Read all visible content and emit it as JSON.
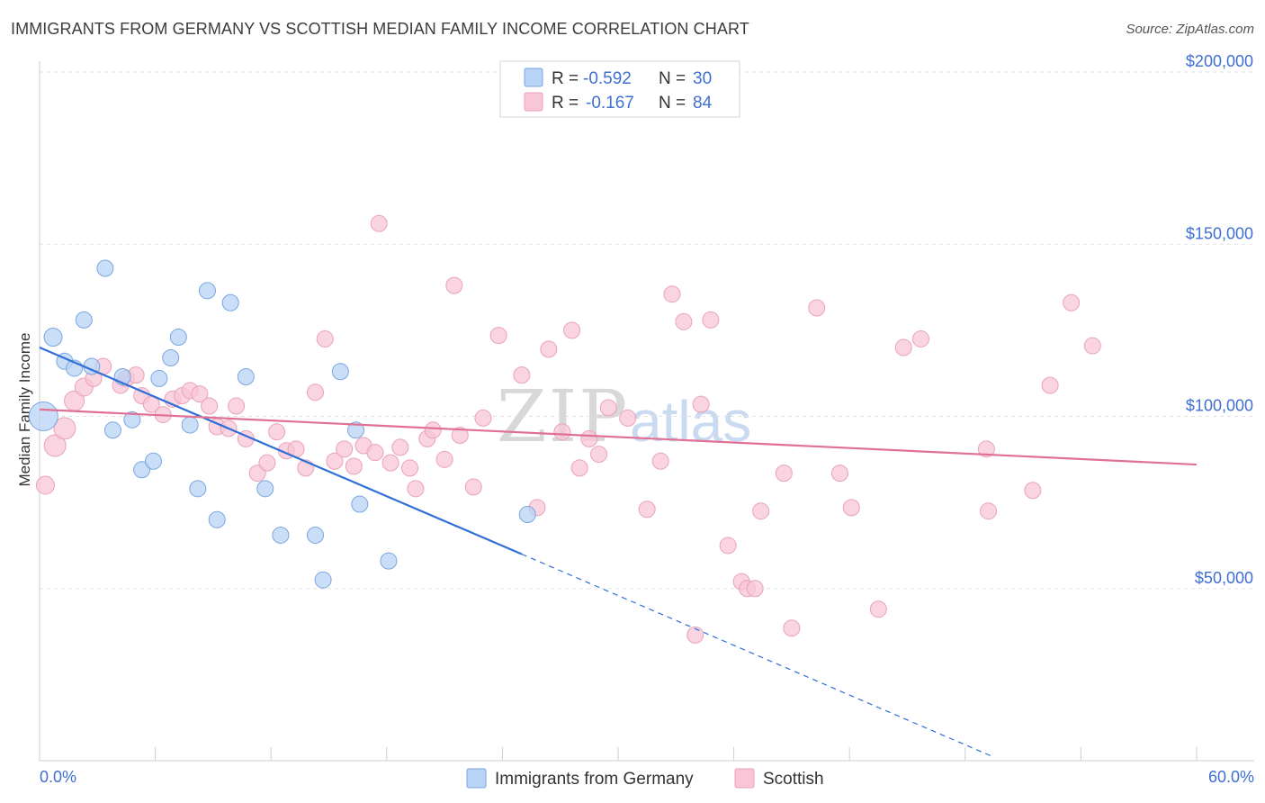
{
  "header": {
    "title": "IMMIGRANTS FROM GERMANY VS SCOTTISH MEDIAN FAMILY INCOME CORRELATION CHART",
    "source": "Source: ZipAtlas.com"
  },
  "watermark": {
    "zip": "ZIP",
    "atlas": "atlas"
  },
  "colors": {
    "blue_fill": "#b8d3f5",
    "blue_stroke": "#7aa6e0",
    "blue_line": "#2f6fd6",
    "pink_fill": "#f8c6d6",
    "pink_stroke": "#e9a3b9",
    "pink_line": "#e07096",
    "accent_text": "#3f6fd1"
  },
  "legend": {
    "series": [
      {
        "r_label": "R = ",
        "r_value": "-0.592",
        "n_label": "N = ",
        "n_value": "30"
      },
      {
        "r_label": "R = ",
        "r_value": "-0.167",
        "n_label": "N = ",
        "n_value": "84"
      }
    ]
  },
  "chart_data": {
    "type": "scatter",
    "title": "IMMIGRANTS FROM GERMANY VS SCOTTISH MEDIAN FAMILY INCOME CORRELATION CHART",
    "xlabel": "",
    "ylabel": "Median Family Income",
    "xlim": [
      0,
      60
    ],
    "ylim": [
      0,
      200000
    ],
    "x_tick_labels": [
      "0.0%",
      "60.0%"
    ],
    "y_ticks": [
      {
        "value": 50000,
        "label": "$50,000"
      },
      {
        "value": 100000,
        "label": "$100,000"
      },
      {
        "value": 150000,
        "label": "$150,000"
      },
      {
        "value": 200000,
        "label": "$200,000"
      }
    ],
    "series": [
      {
        "name": "Immigrants from Germany",
        "color": "#b8d3f5",
        "trend": {
          "x0": 0,
          "y0": 120000,
          "x1": 25,
          "y1": 60000,
          "dashed_to_x": 49.5,
          "dashed_to_y": 1000
        },
        "points": [
          [
            0.2,
            100000,
            16
          ],
          [
            0.7,
            123000,
            10
          ],
          [
            1.3,
            116000,
            9
          ],
          [
            1.8,
            114000,
            9
          ],
          [
            2.3,
            128000,
            9
          ],
          [
            2.7,
            114500,
            9
          ],
          [
            3.4,
            143000,
            9
          ],
          [
            3.8,
            96000,
            9
          ],
          [
            4.3,
            111500,
            9
          ],
          [
            4.8,
            99000,
            9
          ],
          [
            5.3,
            84500,
            9
          ],
          [
            5.9,
            87000,
            9
          ],
          [
            6.2,
            111000,
            9
          ],
          [
            6.8,
            117000,
            9
          ],
          [
            7.2,
            123000,
            9
          ],
          [
            7.8,
            97500,
            9
          ],
          [
            8.2,
            79000,
            9
          ],
          [
            8.7,
            136500,
            9
          ],
          [
            9.2,
            70000,
            9
          ],
          [
            9.9,
            133000,
            9
          ],
          [
            10.7,
            111500,
            9
          ],
          [
            11.7,
            79000,
            9
          ],
          [
            12.5,
            65500,
            9
          ],
          [
            14.3,
            65500,
            9
          ],
          [
            14.7,
            52500,
            9
          ],
          [
            15.6,
            113000,
            9
          ],
          [
            16.4,
            96000,
            9
          ],
          [
            16.6,
            74500,
            9
          ],
          [
            18.1,
            58000,
            9
          ],
          [
            25.3,
            71500,
            9
          ]
        ]
      },
      {
        "name": "Scottish",
        "color": "#f8c6d6",
        "trend": {
          "x0": 0,
          "y0": 102000,
          "x1": 60,
          "y1": 86000
        },
        "points": [
          [
            0.3,
            80000,
            10
          ],
          [
            0.8,
            91500,
            12
          ],
          [
            1.3,
            96500,
            12
          ],
          [
            1.8,
            104500,
            11
          ],
          [
            2.3,
            108500,
            10
          ],
          [
            2.8,
            111000,
            9
          ],
          [
            3.3,
            114500,
            9
          ],
          [
            4.2,
            109000,
            9
          ],
          [
            4.5,
            111000,
            9
          ],
          [
            5.0,
            112000,
            9
          ],
          [
            5.3,
            106000,
            9
          ],
          [
            5.8,
            103500,
            9
          ],
          [
            6.4,
            100500,
            9
          ],
          [
            6.9,
            105000,
            9
          ],
          [
            7.4,
            106000,
            9
          ],
          [
            7.8,
            107500,
            9
          ],
          [
            8.3,
            106500,
            9
          ],
          [
            8.8,
            103000,
            9
          ],
          [
            9.2,
            97000,
            9
          ],
          [
            9.8,
            96500,
            9
          ],
          [
            10.2,
            103000,
            9
          ],
          [
            10.7,
            93500,
            9
          ],
          [
            11.3,
            83500,
            9
          ],
          [
            11.8,
            86500,
            9
          ],
          [
            12.3,
            95500,
            9
          ],
          [
            12.8,
            90000,
            9
          ],
          [
            13.3,
            90500,
            9
          ],
          [
            13.8,
            85000,
            9
          ],
          [
            14.3,
            107000,
            9
          ],
          [
            14.8,
            122500,
            9
          ],
          [
            15.3,
            87000,
            9
          ],
          [
            15.8,
            90500,
            9
          ],
          [
            16.3,
            85500,
            9
          ],
          [
            16.8,
            91500,
            9
          ],
          [
            17.4,
            89500,
            9
          ],
          [
            17.6,
            156000,
            9
          ],
          [
            18.2,
            86500,
            9
          ],
          [
            18.7,
            91000,
            9
          ],
          [
            19.2,
            85000,
            9
          ],
          [
            19.5,
            79000,
            9
          ],
          [
            20.1,
            93500,
            9
          ],
          [
            20.4,
            96000,
            9
          ],
          [
            21.0,
            87500,
            9
          ],
          [
            21.5,
            138000,
            9
          ],
          [
            21.8,
            94500,
            9
          ],
          [
            22.5,
            79500,
            9
          ],
          [
            23.0,
            99500,
            9
          ],
          [
            23.8,
            123500,
            9
          ],
          [
            25.0,
            112000,
            9
          ],
          [
            25.8,
            73500,
            9
          ],
          [
            26.4,
            119500,
            9
          ],
          [
            27.1,
            95500,
            9
          ],
          [
            27.6,
            125000,
            9
          ],
          [
            28.0,
            85000,
            9
          ],
          [
            28.5,
            93500,
            9
          ],
          [
            29.0,
            89000,
            9
          ],
          [
            29.5,
            102500,
            9
          ],
          [
            30.5,
            99500,
            9
          ],
          [
            31.5,
            73000,
            9
          ],
          [
            32.2,
            87000,
            9
          ],
          [
            32.8,
            135500,
            9
          ],
          [
            33.4,
            127500,
            9
          ],
          [
            34.0,
            36500,
            9
          ],
          [
            34.3,
            103500,
            9
          ],
          [
            34.8,
            128000,
            9
          ],
          [
            35.7,
            62500,
            9
          ],
          [
            36.4,
            52000,
            9
          ],
          [
            36.7,
            50000,
            9
          ],
          [
            37.1,
            50000,
            9
          ],
          [
            37.4,
            72500,
            9
          ],
          [
            38.6,
            83500,
            9
          ],
          [
            39.0,
            38500,
            9
          ],
          [
            40.3,
            131500,
            9
          ],
          [
            41.5,
            83500,
            9
          ],
          [
            42.1,
            73500,
            9
          ],
          [
            43.5,
            44000,
            9
          ],
          [
            44.8,
            120000,
            9
          ],
          [
            45.7,
            122500,
            9
          ],
          [
            49.1,
            90500,
            9
          ],
          [
            49.2,
            72500,
            9
          ],
          [
            51.5,
            78500,
            9
          ],
          [
            52.4,
            109000,
            9
          ],
          [
            53.5,
            133000,
            9
          ],
          [
            54.6,
            120500,
            9
          ]
        ]
      }
    ]
  }
}
